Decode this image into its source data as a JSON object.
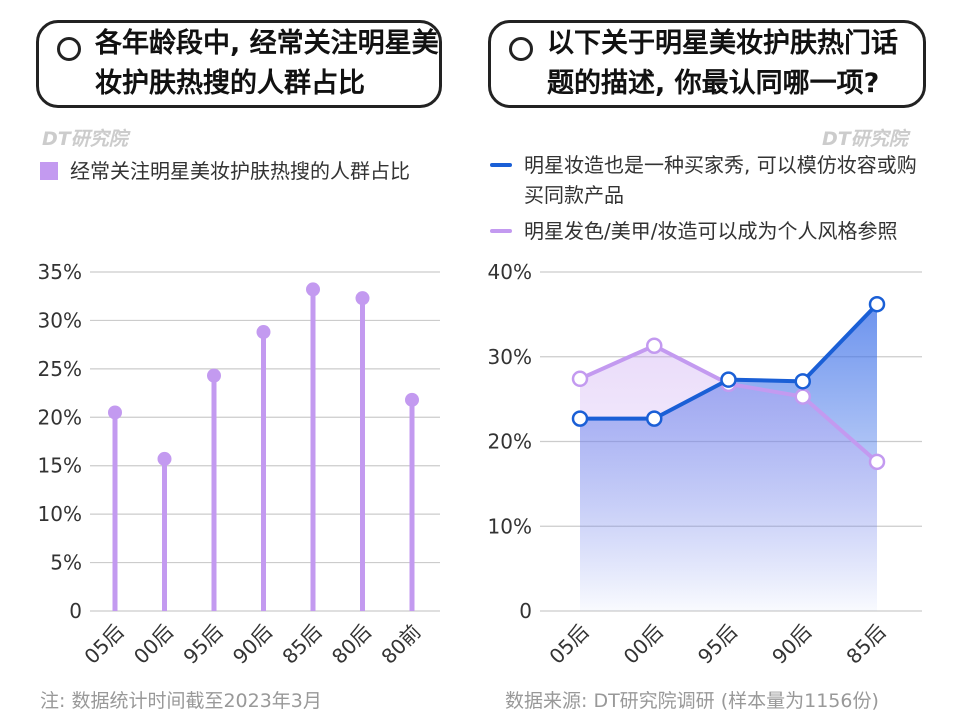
{
  "chart_data": [
    {
      "type": "lollipop",
      "title": "各年龄段中, 经常关注明星美妆护肤热搜的人群占比",
      "categories": [
        "05后",
        "00后",
        "95后",
        "90后",
        "85后",
        "80后",
        "80前"
      ],
      "series": [
        {
          "name": "经常关注明星美妆护肤热搜的人群占比",
          "color": "#c39af0",
          "values": [
            20.5,
            15.7,
            24.3,
            28.8,
            33.2,
            32.3,
            21.8
          ]
        }
      ],
      "ylim": [
        0,
        35
      ],
      "yticks": [
        0,
        {
          "value": 5,
          "label": "5%"
        },
        {
          "value": 10,
          "label": "10%"
        },
        {
          "value": 15,
          "label": "15%"
        },
        {
          "value": 20,
          "label": "20%"
        },
        {
          "value": 25,
          "label": "25%"
        },
        {
          "value": 30,
          "label": "30%"
        },
        {
          "value": 35,
          "label": "35%"
        }
      ],
      "grid": true
    },
    {
      "type": "line",
      "title": "以下关于明星美妆护肤热门话题的描述, 你最认同哪一项?",
      "categories": [
        "05后",
        "00后",
        "95后",
        "90后",
        "85后"
      ],
      "series": [
        {
          "name": "明星妆造也是一种买家秀, 可以模仿妆容或购买同款产品",
          "color": "#1a5fd6",
          "values": [
            22.7,
            22.7,
            27.3,
            27.1,
            36.2
          ]
        },
        {
          "name": "明星发色/美甲/妆造可以成为个人风格参照",
          "color": "#c39af0",
          "values": [
            27.4,
            31.3,
            26.8,
            25.3,
            17.6
          ]
        }
      ],
      "ylim": [
        0,
        40
      ],
      "yticks": [
        0,
        {
          "value": 10,
          "label": "10%"
        },
        {
          "value": 20,
          "label": "20%"
        },
        {
          "value": 30,
          "label": "30%"
        },
        {
          "value": 40,
          "label": "40%"
        }
      ],
      "grid": true
    }
  ],
  "watermark": "DT研究院",
  "note": "注: 数据统计时间截至2023年3月",
  "source": "数据来源: DT研究院调研 (样本量为1156份)"
}
